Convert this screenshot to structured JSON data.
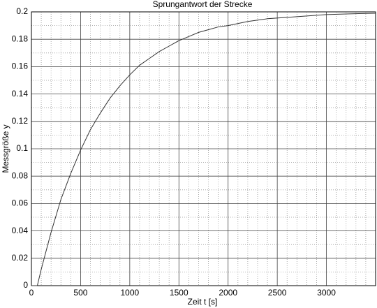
{
  "chart_data": {
    "type": "line",
    "title": "Sprungantwort der Strecke",
    "xlabel": "Zeit t [s]",
    "ylabel": "Messgröße y",
    "x": [
      0,
      60,
      100,
      200,
      300,
      400,
      500,
      600,
      700,
      800,
      900,
      1000,
      1100,
      1200,
      1300,
      1400,
      1500,
      1600,
      1700,
      1800,
      1900,
      2000,
      2200,
      2400,
      2600,
      2800,
      3000,
      3200,
      3500
    ],
    "series": [
      {
        "color": "#333333",
        "values": [
          0,
          0,
          0.012,
          0.039,
          0.063,
          0.082,
          0.099,
          0.114,
          0.126,
          0.137,
          0.146,
          0.154,
          0.161,
          0.166,
          0.171,
          0.175,
          0.179,
          0.182,
          0.185,
          0.187,
          0.189,
          0.19,
          0.193,
          0.195,
          0.196,
          0.197,
          0.198,
          0.1985,
          0.199
        ]
      }
    ],
    "xlim": [
      0,
      3500
    ],
    "xticks": [
      0,
      500,
      1000,
      1500,
      2000,
      2500,
      3000
    ],
    "ylim": [
      0,
      0.2
    ],
    "yticks": [
      0,
      0.02,
      0.04,
      0.06,
      0.08,
      0.1,
      0.12,
      0.14,
      0.16,
      0.18,
      0.2
    ],
    "xminorticks": [
      100,
      200,
      300,
      400,
      600,
      700,
      800,
      900,
      1100,
      1200,
      1300,
      1400,
      1600,
      1700,
      1800,
      1900,
      2100,
      2200,
      2300,
      2400,
      2600,
      2700,
      2800,
      2900,
      3100,
      3200,
      3300,
      3400
    ],
    "yminorticks": [
      0.01,
      0.03,
      0.05,
      0.07,
      0.09,
      0.11,
      0.13,
      0.15,
      0.17,
      0.19
    ],
    "grid": true
  }
}
